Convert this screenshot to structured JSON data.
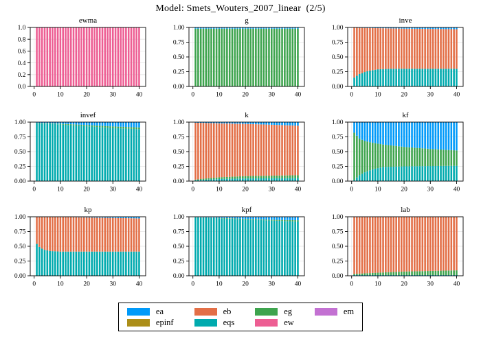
{
  "page_title": "Model: Smets_Wouters_2007_linear  (2/5)",
  "colors": {
    "ea": "#009AF9",
    "eb": "#E36F47",
    "eg": "#3EA44E",
    "em": "#C371D2",
    "epinf": "#AC8E18",
    "eqs": "#00AAAE",
    "ew": "#ED5E93"
  },
  "grid_color": "#E5E5E5",
  "axis_color": "#000000",
  "legend": {
    "entries": [
      {
        "label": "ea",
        "color_key": "ea"
      },
      {
        "label": "eb",
        "color_key": "eb"
      },
      {
        "label": "eg",
        "color_key": "eg"
      },
      {
        "label": "em",
        "color_key": "em"
      },
      {
        "label": "epinf",
        "color_key": "epinf"
      },
      {
        "label": "eqs",
        "color_key": "eqs"
      },
      {
        "label": "ew",
        "color_key": "ew"
      }
    ]
  },
  "chart_data": {
    "type": "bar",
    "stacked": true,
    "note": "Forecast error variance decomposition shares by shock; bars at horizons 1..40; series values given as [horizon, share] keyframes with linear interpolation; 'remainder' series takes 1 minus the sum of the others.",
    "stack_order_bottom_to_top": [
      "ew",
      "eqs",
      "epinf",
      "em",
      "eg",
      "eb",
      "ea"
    ],
    "x_axis": {
      "min": -1.5,
      "max": 42.5,
      "ticks": [
        "0",
        "10",
        "20",
        "30",
        "40"
      ],
      "bars": 40
    },
    "subplots": [
      {
        "title": "ewma",
        "y_ticks": [
          "0.0",
          "0.2",
          "0.4",
          "0.6",
          "0.8",
          "1.0"
        ],
        "series": {
          "ew": [
            [
              1,
              1.0
            ],
            [
              40,
              1.0
            ]
          ]
        },
        "remainder": null
      },
      {
        "title": "g",
        "y_ticks": [
          "0.00",
          "0.25",
          "0.50",
          "0.75",
          "1.00"
        ],
        "series": {
          "ea": [
            [
              1,
              0.02
            ],
            [
              40,
              0.02
            ]
          ]
        },
        "remainder": "eg"
      },
      {
        "title": "inve",
        "y_ticks": [
          "0.00",
          "0.25",
          "0.50",
          "0.75",
          "1.00"
        ],
        "series": {
          "eqs": [
            [
              1,
              0.15
            ],
            [
              3,
              0.21
            ],
            [
              6,
              0.26
            ],
            [
              10,
              0.29
            ],
            [
              15,
              0.3
            ],
            [
              40,
              0.3
            ]
          ],
          "ea": [
            [
              1,
              0.005
            ],
            [
              10,
              0.012
            ],
            [
              20,
              0.02
            ],
            [
              40,
              0.03
            ]
          ]
        },
        "remainder": "eb"
      },
      {
        "title": "invef",
        "y_ticks": [
          "0.00",
          "0.25",
          "0.50",
          "0.75",
          "1.00"
        ],
        "series": {
          "eqs": [
            [
              1,
              0.985
            ],
            [
              10,
              0.96
            ],
            [
              20,
              0.93
            ],
            [
              30,
              0.9
            ],
            [
              40,
              0.88
            ]
          ],
          "eg": [
            [
              1,
              0.005
            ],
            [
              10,
              0.012
            ],
            [
              20,
              0.02
            ],
            [
              30,
              0.026
            ],
            [
              40,
              0.03
            ]
          ]
        },
        "remainder": "ea"
      },
      {
        "title": "k",
        "y_ticks": [
          "0.00",
          "0.25",
          "0.50",
          "0.75",
          "1.00"
        ],
        "series": {
          "eqs": [
            [
              1,
              0.015
            ],
            [
              5,
              0.025
            ],
            [
              10,
              0.035
            ],
            [
              20,
              0.045
            ],
            [
              40,
              0.05
            ]
          ],
          "eg": [
            [
              1,
              0.01
            ],
            [
              5,
              0.02
            ],
            [
              10,
              0.03
            ],
            [
              20,
              0.04
            ],
            [
              40,
              0.05
            ]
          ],
          "ea": [
            [
              1,
              0.01
            ],
            [
              10,
              0.02
            ],
            [
              20,
              0.03
            ],
            [
              30,
              0.045
            ],
            [
              40,
              0.06
            ]
          ]
        },
        "remainder": "eb"
      },
      {
        "title": "kf",
        "y_ticks": [
          "0.00",
          "0.25",
          "0.50",
          "0.75",
          "1.00"
        ],
        "series": {
          "eqs": [
            [
              1,
              0.02
            ],
            [
              3,
              0.1
            ],
            [
              5,
              0.15
            ],
            [
              8,
              0.2
            ],
            [
              12,
              0.24
            ],
            [
              20,
              0.25
            ],
            [
              40,
              0.26
            ]
          ],
          "eg": [
            [
              1,
              0.8
            ],
            [
              3,
              0.62
            ],
            [
              5,
              0.53
            ],
            [
              8,
              0.45
            ],
            [
              12,
              0.38
            ],
            [
              20,
              0.33
            ],
            [
              30,
              0.29
            ],
            [
              40,
              0.26
            ]
          ]
        },
        "remainder": "ea"
      },
      {
        "title": "kp",
        "y_ticks": [
          "0.00",
          "0.25",
          "0.50",
          "0.75",
          "1.00"
        ],
        "series": {
          "eqs": [
            [
              1,
              0.54
            ],
            [
              2,
              0.49
            ],
            [
              3,
              0.46
            ],
            [
              4,
              0.44
            ],
            [
              6,
              0.42
            ],
            [
              10,
              0.41
            ],
            [
              40,
              0.41
            ]
          ],
          "ea": [
            [
              1,
              0.002
            ],
            [
              15,
              0.006
            ],
            [
              25,
              0.015
            ],
            [
              40,
              0.028
            ]
          ]
        },
        "remainder": "eb"
      },
      {
        "title": "kpf",
        "y_ticks": [
          "0.00",
          "0.25",
          "0.50",
          "0.75",
          "1.00"
        ],
        "series": {
          "eqs": [
            [
              1,
              0.99
            ],
            [
              10,
              0.975
            ],
            [
              20,
              0.955
            ],
            [
              30,
              0.935
            ],
            [
              40,
              0.92
            ]
          ],
          "eg": [
            [
              1,
              0.003
            ],
            [
              20,
              0.01
            ],
            [
              40,
              0.02
            ]
          ]
        },
        "remainder": "ea"
      },
      {
        "title": "lab",
        "y_ticks": [
          "0.00",
          "0.25",
          "0.50",
          "0.75",
          "1.00"
        ],
        "series": {
          "eqs": [
            [
              1,
              0.012
            ],
            [
              40,
              0.012
            ]
          ],
          "eg": [
            [
              1,
              0.02
            ],
            [
              10,
              0.04
            ],
            [
              20,
              0.06
            ],
            [
              30,
              0.07
            ],
            [
              40,
              0.08
            ]
          ]
        },
        "remainder": "eb"
      }
    ]
  }
}
